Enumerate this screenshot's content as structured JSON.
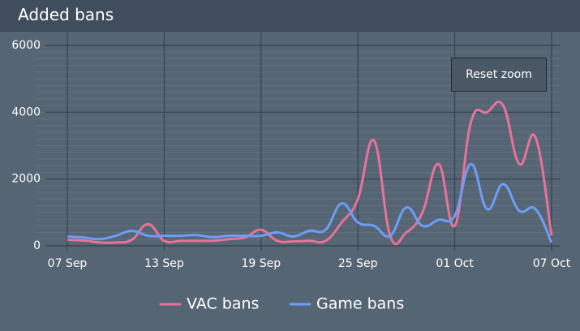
{
  "header": {
    "title": "Added bans"
  },
  "reset_button": "Reset zoom",
  "chart_data": {
    "type": "line",
    "categories": [
      "07 Sep",
      null,
      null,
      null,
      null,
      null,
      "13 Sep",
      null,
      null,
      null,
      null,
      null,
      "19 Sep",
      null,
      null,
      null,
      null,
      null,
      "25 Sep",
      null,
      null,
      null,
      null,
      null,
      "01 Oct",
      null,
      null,
      null,
      null,
      null,
      "07 Oct"
    ],
    "series": [
      {
        "name": "VAC bans",
        "color": "#e8729a",
        "values": [
          180,
          160,
          100,
          100,
          180,
          650,
          150,
          150,
          150,
          150,
          200,
          250,
          480,
          150,
          130,
          150,
          150,
          700,
          1400,
          3150,
          300,
          400,
          1000,
          2450,
          600,
          3700,
          4000,
          4200,
          2450,
          3250,
          300
        ]
      },
      {
        "name": "Game bans",
        "color": "#6d9ef5",
        "values": [
          280,
          250,
          200,
          300,
          450,
          300,
          300,
          300,
          320,
          260,
          300,
          300,
          300,
          400,
          280,
          450,
          480,
          1270,
          700,
          600,
          300,
          1150,
          600,
          780,
          900,
          2450,
          1100,
          1850,
          1050,
          1100,
          100
        ]
      }
    ],
    "ylim": [
      0,
      6000
    ],
    "yticks": [
      0,
      2000,
      4000,
      6000
    ],
    "grid": true,
    "legend": "bottom"
  }
}
